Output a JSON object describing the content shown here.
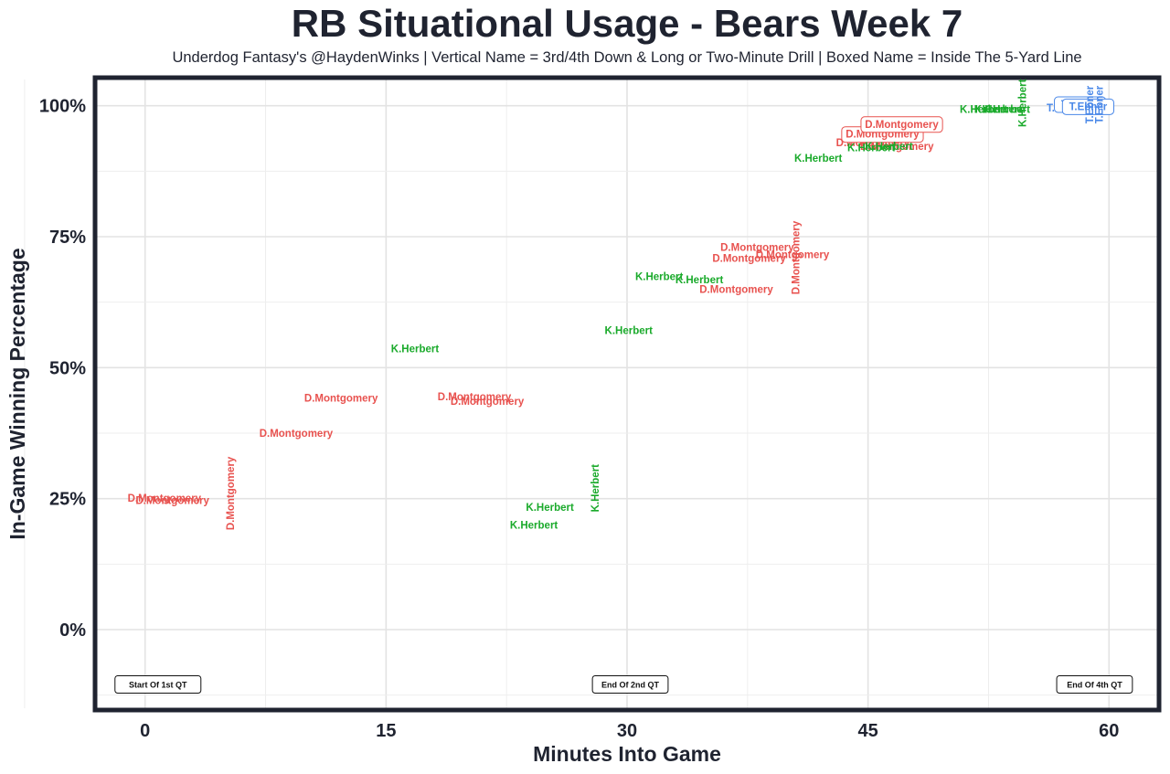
{
  "chart_data": {
    "type": "scatter",
    "title": "RB Situational Usage - Bears Week 7",
    "subtitle": "Underdog Fantasy's @HaydenWinks | Vertical Name = 3rd/4th Down & Long or Two-Minute Drill | Boxed Name = Inside The 5-Yard Line",
    "xlabel": "Minutes Into Game",
    "ylabel": "In-Game Winning Percentage",
    "xlim": [
      -3,
      63
    ],
    "ylim": [
      -15,
      105
    ],
    "xticks": [
      0,
      15,
      30,
      45,
      60
    ],
    "xtick_labels": [
      "0",
      "15",
      "30",
      "45",
      "60"
    ],
    "yticks": [
      0,
      25,
      50,
      75,
      100
    ],
    "ytick_labels": [
      "0%",
      "25%",
      "50%",
      "75%",
      "100%"
    ],
    "player_colors": {
      "D.Montgomery": "#e8524f",
      "K.Herbert": "#1aaa2b",
      "T.Ebner": "#4a88e8"
    },
    "quarter_markers": [
      {
        "x": 0.8,
        "label": "Start Of 1st QT"
      },
      {
        "x": 30.2,
        "label": "End Of 2nd QT"
      },
      {
        "x": 59.1,
        "label": "End Of 4th QT"
      }
    ],
    "series": [
      {
        "name": "D.Montgomery",
        "points": [
          {
            "x": 1.2,
            "y": 25.1,
            "label": "D.Montgomery",
            "vertical": false,
            "boxed": false
          },
          {
            "x": 1.7,
            "y": 24.7,
            "label": "D.Montgomery",
            "vertical": false,
            "boxed": false
          },
          {
            "x": 5.3,
            "y": 26.0,
            "label": "D.Montgomery",
            "vertical": true,
            "boxed": false
          },
          {
            "x": 9.4,
            "y": 37.5,
            "label": "D.Montgomery",
            "vertical": false,
            "boxed": false
          },
          {
            "x": 12.2,
            "y": 44.2,
            "label": "D.Montgomery",
            "vertical": false,
            "boxed": false
          },
          {
            "x": 20.5,
            "y": 44.5,
            "label": "D.Montgomery",
            "vertical": false,
            "boxed": false
          },
          {
            "x": 21.3,
            "y": 43.6,
            "label": "D.Montgomery",
            "vertical": false,
            "boxed": false
          },
          {
            "x": 36.8,
            "y": 65.0,
            "label": "D.Montgomery",
            "vertical": false,
            "boxed": false
          },
          {
            "x": 37.6,
            "y": 70.9,
            "label": "D.Montgomery",
            "vertical": false,
            "boxed": false
          },
          {
            "x": 38.1,
            "y": 73.0,
            "label": "D.Montgomery",
            "vertical": false,
            "boxed": false
          },
          {
            "x": 40.3,
            "y": 71.6,
            "label": "D.Montgomery",
            "vertical": false,
            "boxed": false
          },
          {
            "x": 40.5,
            "y": 71.0,
            "label": "D.Montgomery",
            "vertical": true,
            "boxed": false
          },
          {
            "x": 45.3,
            "y": 93.0,
            "label": "D.Montgomery",
            "vertical": false,
            "boxed": false
          },
          {
            "x": 46.8,
            "y": 92.3,
            "label": "D.Montgomery",
            "vertical": false,
            "boxed": false
          },
          {
            "x": 45.9,
            "y": 94.5,
            "label": "D.Montgomery",
            "vertical": false,
            "boxed": true
          },
          {
            "x": 47.1,
            "y": 96.4,
            "label": "D.Montgomery",
            "vertical": false,
            "boxed": true
          }
        ]
      },
      {
        "name": "K.Herbert",
        "points": [
          {
            "x": 24.2,
            "y": 20.0,
            "label": "K.Herbert",
            "vertical": false,
            "boxed": false
          },
          {
            "x": 25.2,
            "y": 23.4,
            "label": "K.Herbert",
            "vertical": false,
            "boxed": false
          },
          {
            "x": 28.0,
            "y": 27.0,
            "label": "K.Herbert",
            "vertical": true,
            "boxed": false
          },
          {
            "x": 16.8,
            "y": 53.6,
            "label": "K.Herbert",
            "vertical": false,
            "boxed": false
          },
          {
            "x": 30.1,
            "y": 57.1,
            "label": "K.Herbert",
            "vertical": false,
            "boxed": false
          },
          {
            "x": 32.0,
            "y": 67.4,
            "label": "K.Herbert",
            "vertical": false,
            "boxed": false
          },
          {
            "x": 34.5,
            "y": 66.8,
            "label": "K.Herbert",
            "vertical": false,
            "boxed": false
          },
          {
            "x": 41.9,
            "y": 90.0,
            "label": "K.Herbert",
            "vertical": false,
            "boxed": false
          },
          {
            "x": 45.2,
            "y": 92.0,
            "label": "K.Herbert",
            "vertical": false,
            "boxed": false
          },
          {
            "x": 46.3,
            "y": 92.3,
            "label": "K.Herbert",
            "vertical": false,
            "boxed": false
          },
          {
            "x": 52.2,
            "y": 99.3,
            "label": "K.Herbert",
            "vertical": false,
            "boxed": false
          },
          {
            "x": 53.1,
            "y": 99.3,
            "label": "K.Herbert",
            "vertical": false,
            "boxed": false
          },
          {
            "x": 53.6,
            "y": 99.3,
            "label": "K.Herbert",
            "vertical": false,
            "boxed": false
          },
          {
            "x": 54.6,
            "y": 100.5,
            "label": "K.Herbert",
            "vertical": true,
            "boxed": false
          }
        ]
      },
      {
        "name": "T.Ebner",
        "points": [
          {
            "x": 57.3,
            "y": 99.6,
            "label": "T.Ebner",
            "vertical": false,
            "boxed": false
          },
          {
            "x": 58.2,
            "y": 100.2,
            "label": "T.Ebner",
            "vertical": false,
            "boxed": true
          },
          {
            "x": 58.7,
            "y": 99.8,
            "label": "T.Ebner",
            "vertical": false,
            "boxed": true
          },
          {
            "x": 58.8,
            "y": 100.2,
            "label": "T.Ebner",
            "vertical": true,
            "boxed": false
          },
          {
            "x": 59.4,
            "y": 100.2,
            "label": "T.Ebner",
            "vertical": true,
            "boxed": false
          }
        ]
      }
    ]
  }
}
